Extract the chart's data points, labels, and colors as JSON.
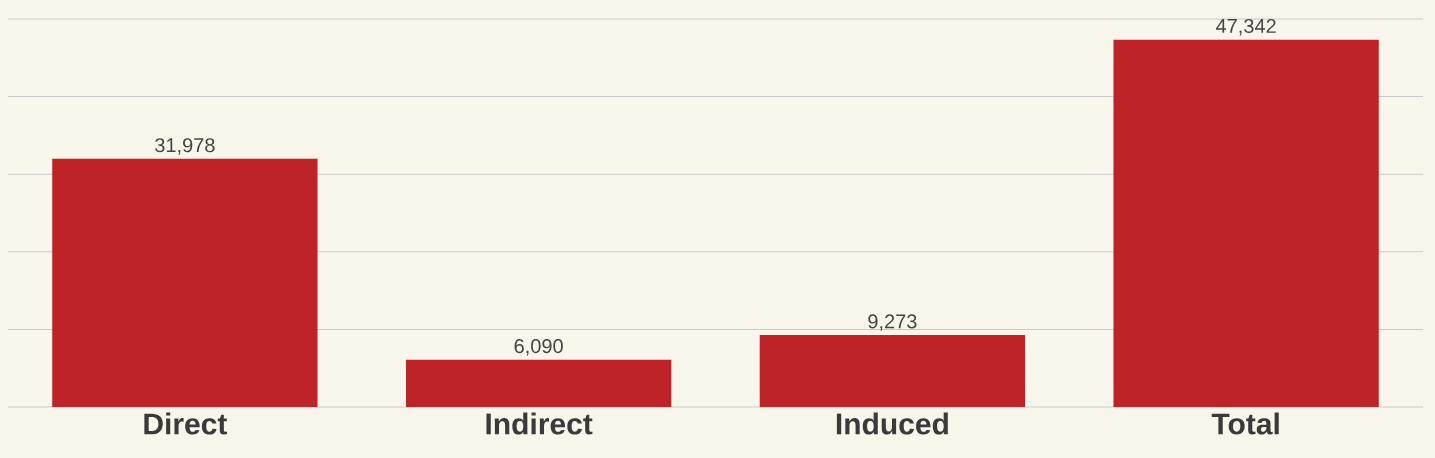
{
  "chart_data": {
    "type": "bar",
    "categories": [
      "Direct",
      "Indirect",
      "Induced",
      "Total"
    ],
    "values": [
      31978,
      6090,
      9273,
      47342
    ],
    "value_labels": [
      "31,978",
      "6,090",
      "9,273",
      "47,342"
    ],
    "color": "#be2328",
    "ylim": [
      0,
      50000
    ],
    "yticks": [
      {
        "value": 0,
        "label": null
      },
      {
        "value": 10000,
        "label": null
      },
      {
        "value": 20000,
        "label": null
      },
      {
        "value": 30000,
        "label": null
      },
      {
        "value": 40000,
        "label": null
      },
      {
        "value": 50000,
        "label": null
      }
    ],
    "grid": "y",
    "tick_labels": "x"
  }
}
